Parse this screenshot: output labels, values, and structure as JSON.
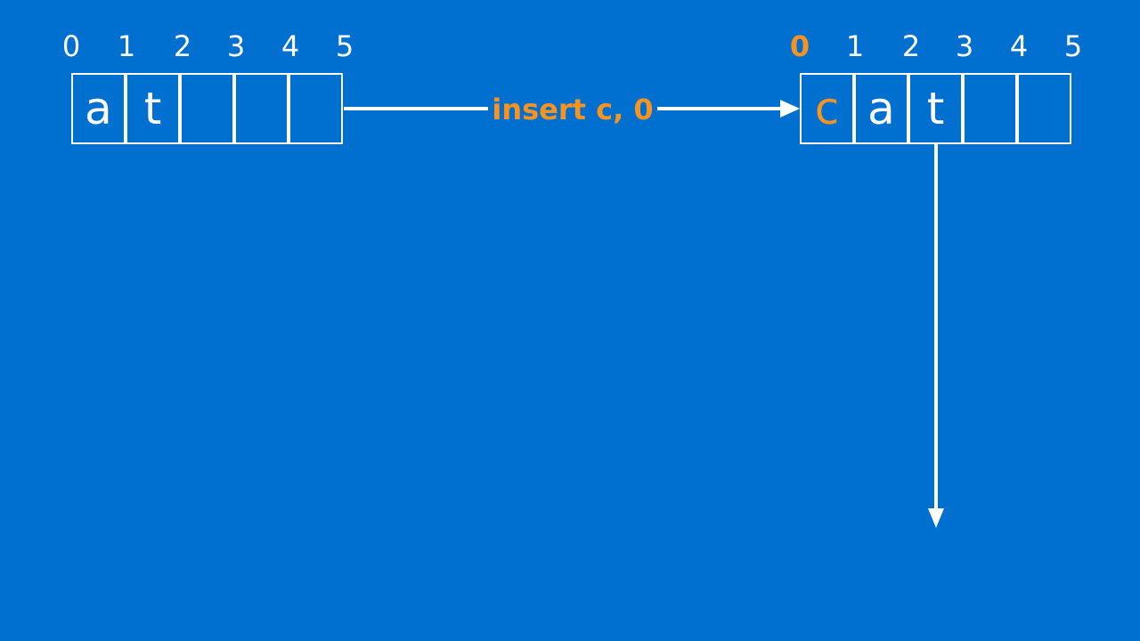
{
  "colors": {
    "background": "#0070d0",
    "foreground": "#ffffff",
    "accent": "#f7931e"
  },
  "before": {
    "indices": [
      "0",
      "1",
      "2",
      "3",
      "4",
      "5"
    ],
    "cells": [
      "a",
      "t",
      "",
      "",
      ""
    ]
  },
  "operation": {
    "label": "insert c, 0"
  },
  "after": {
    "indices": [
      "0",
      "1",
      "2",
      "3",
      "4",
      "5"
    ],
    "highlighted_index": "0",
    "cells": [
      "c",
      "a",
      "t",
      "",
      ""
    ],
    "highlighted_cell": "c"
  }
}
